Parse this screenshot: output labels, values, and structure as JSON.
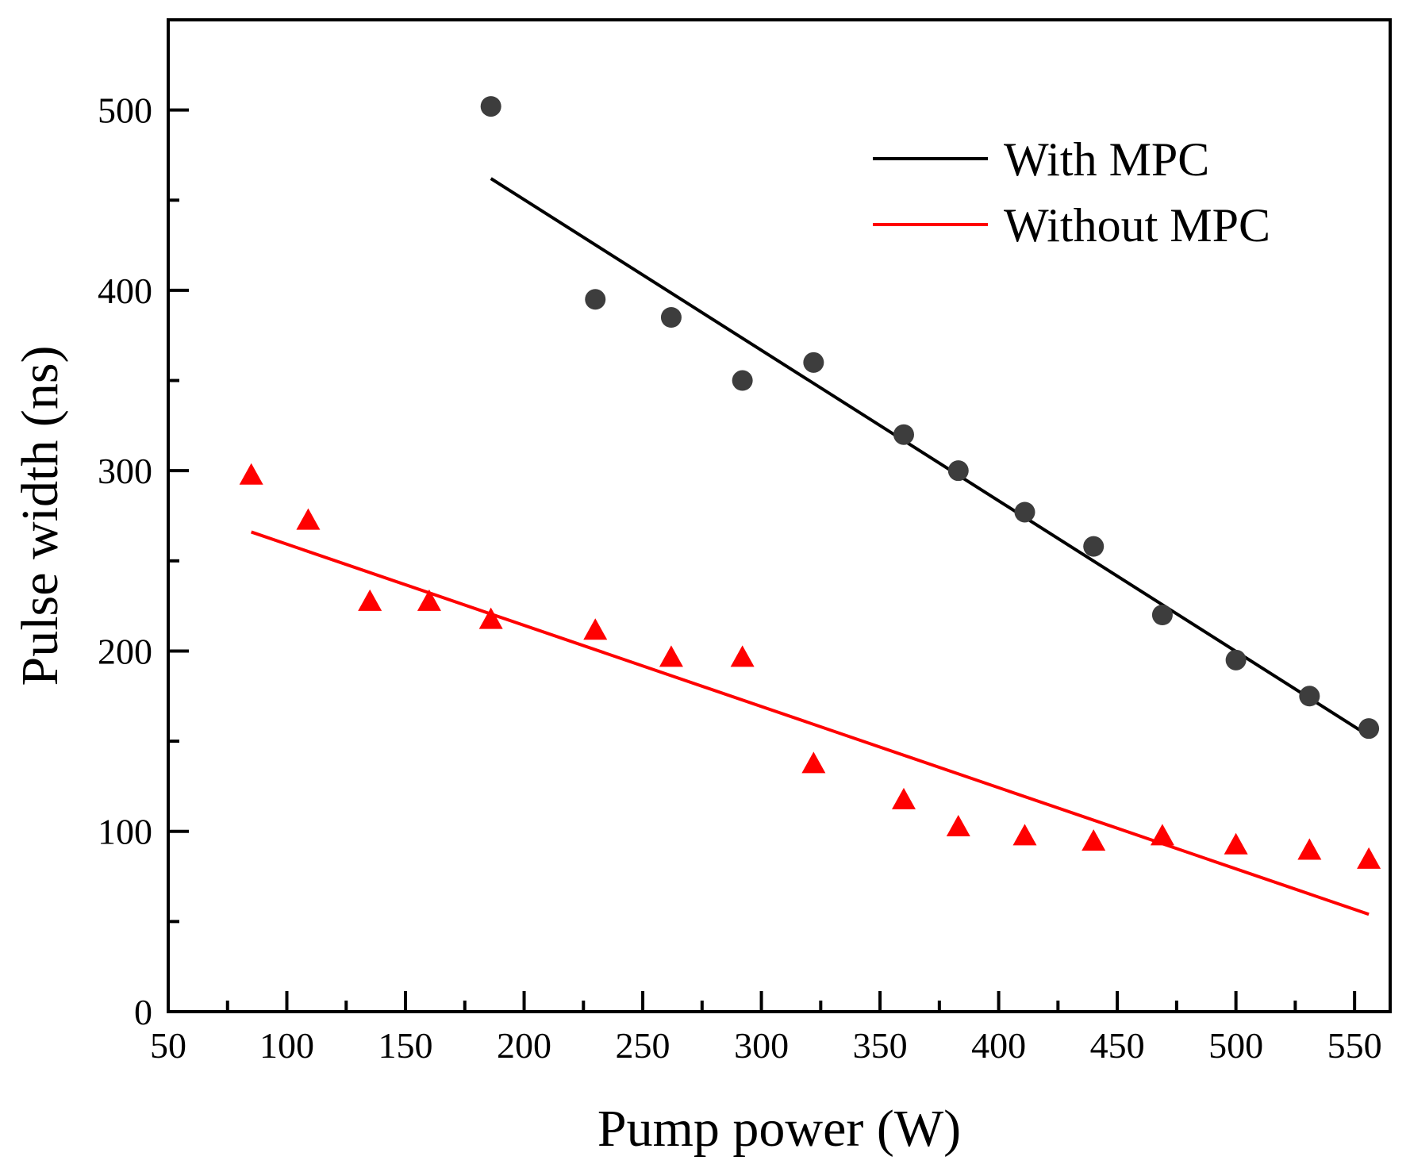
{
  "chart_data": {
    "type": "scatter",
    "xlabel": "Pump power (W)",
    "ylabel": "Pulse width (ns)",
    "xlim": [
      50,
      565
    ],
    "ylim": [
      0,
      550
    ],
    "xticks": [
      50,
      100,
      150,
      200,
      250,
      300,
      350,
      400,
      450,
      500,
      550
    ],
    "xtick_labels": [
      "50",
      "100",
      "150",
      "200",
      "250",
      "300",
      "350",
      "400",
      "450",
      "500",
      "550"
    ],
    "yticks": [
      0,
      100,
      200,
      300,
      400,
      500
    ],
    "ytick_labels": [
      "0",
      "100",
      "200",
      "300",
      "400",
      "500"
    ],
    "grid": false,
    "legend_position": "top-right",
    "series": [
      {
        "name": "With MPC",
        "marker": "circle",
        "marker_color": "#3d3d3d",
        "line_color": "#000000",
        "x": [
          186,
          230,
          262,
          292,
          322,
          360,
          383,
          411,
          440,
          469,
          500,
          531,
          556
        ],
        "y": [
          502,
          395,
          385,
          350,
          360,
          320,
          300,
          277,
          258,
          220,
          195,
          175,
          157
        ],
        "fit_x": [
          186,
          556
        ],
        "fit_y": [
          462,
          153
        ]
      },
      {
        "name": "Without MPC",
        "marker": "triangle",
        "marker_color": "#ff0000",
        "line_color": "#ff0000",
        "x": [
          85,
          109,
          135,
          160,
          186,
          230,
          262,
          292,
          322,
          360,
          383,
          411,
          440,
          469,
          500,
          531,
          556
        ],
        "y": [
          297,
          272,
          227,
          227,
          217,
          211,
          196,
          196,
          137,
          117,
          102,
          97,
          94,
          97,
          92,
          89,
          84
        ],
        "fit_x": [
          85,
          556
        ],
        "fit_y": [
          266,
          54
        ]
      }
    ]
  }
}
